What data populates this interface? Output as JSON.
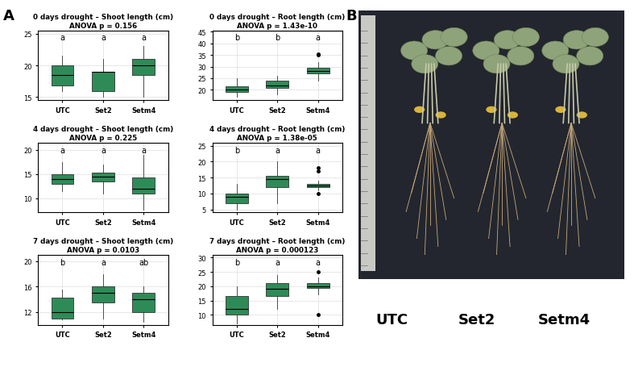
{
  "panel_labels": [
    "A",
    "B"
  ],
  "photo": {
    "labels": [
      "UTC",
      "Set2",
      "Setm4"
    ]
  },
  "chart_data": [
    {
      "type": "box",
      "title": "0 days drought – Shoot length (cm)\nANOVA p = 0.156",
      "categories": [
        "UTC",
        "Set2",
        "Setm4"
      ],
      "color": "#2e8b57",
      "grid": true,
      "ylim": [
        14.5,
        25.5
      ],
      "yticks": [
        15,
        20,
        25
      ],
      "annotations": [
        "a",
        "a",
        "a"
      ],
      "boxes": [
        {
          "min": 16,
          "q1": 16.8,
          "median": 18.5,
          "q3": 20,
          "max": 21.5,
          "outliers": []
        },
        {
          "min": 15,
          "q1": 16,
          "median": 19,
          "q3": 19,
          "max": 21,
          "outliers": []
        },
        {
          "min": 15,
          "q1": 18.5,
          "median": 20,
          "q3": 21,
          "max": 23,
          "outliers": []
        }
      ]
    },
    {
      "type": "box",
      "title": "0 days drought – Root length (cm)\nANOVA p = 1.43e-10",
      "categories": [
        "UTC",
        "Set2",
        "Setm4"
      ],
      "color": "#2e8b57",
      "grid": true,
      "ylim": [
        15.5,
        45.5
      ],
      "yticks": [
        20,
        25,
        30,
        35,
        40,
        45
      ],
      "annotations": [
        "b",
        "b",
        "a"
      ],
      "boxes": [
        {
          "min": 17,
          "q1": 19,
          "median": 20,
          "q3": 21.5,
          "max": 25,
          "outliers": []
        },
        {
          "min": 18,
          "q1": 21,
          "median": 22,
          "q3": 24,
          "max": 26,
          "outliers": []
        },
        {
          "min": 24,
          "q1": 27,
          "median": 28,
          "q3": 29.5,
          "max": 32,
          "outliers": [
            35,
            35.5
          ]
        }
      ]
    },
    {
      "type": "box",
      "title": "4 days drought – Shoot length (cm)\nANOVA p = 0.225",
      "categories": [
        "UTC",
        "Set2",
        "Setm4"
      ],
      "color": "#2e8b57",
      "grid": true,
      "ylim": [
        7,
        21.5
      ],
      "yticks": [
        10,
        15,
        20
      ],
      "annotations": [
        "a",
        "a",
        "a"
      ],
      "boxes": [
        {
          "min": 11.5,
          "q1": 13,
          "median": 14,
          "q3": 15,
          "max": 17.5,
          "outliers": []
        },
        {
          "min": 11,
          "q1": 13.5,
          "median": 14.5,
          "q3": 15.2,
          "max": 17,
          "outliers": []
        },
        {
          "min": 7.5,
          "q1": 11,
          "median": 12,
          "q3": 14.3,
          "max": 19,
          "outliers": []
        }
      ]
    },
    {
      "type": "box",
      "title": "4 days drought – Root length (cm)\nANOVA p = 1.38e-05",
      "categories": [
        "UTC",
        "Set2",
        "Setm4"
      ],
      "color": "#2e8b57",
      "grid": true,
      "ylim": [
        4,
        26
      ],
      "yticks": [
        5,
        10,
        15,
        20,
        25
      ],
      "annotations": [
        "b",
        "a",
        "a"
      ],
      "boxes": [
        {
          "min": 5,
          "q1": 7,
          "median": 9,
          "q3": 10,
          "max": 13,
          "outliers": []
        },
        {
          "min": 7,
          "q1": 12,
          "median": 14.5,
          "q3": 15.5,
          "max": 20,
          "outliers": []
        },
        {
          "min": 11,
          "q1": 12,
          "median": 12.5,
          "q3": 13,
          "max": 14,
          "outliers": [
            10,
            17,
            18
          ]
        }
      ]
    },
    {
      "type": "box",
      "title": "7 days drought – Shoot length (cm)\nANOVA p = 0.0103",
      "categories": [
        "UTC",
        "Set2",
        "Setm4"
      ],
      "color": "#2e8b57",
      "grid": true,
      "ylim": [
        10,
        21
      ],
      "yticks": [
        12,
        16,
        20
      ],
      "annotations": [
        "b",
        "a",
        "ab"
      ],
      "boxes": [
        {
          "min": 10.8,
          "q1": 11,
          "median": 12,
          "q3": 14.2,
          "max": 15.5,
          "outliers": []
        },
        {
          "min": 11,
          "q1": 13.5,
          "median": 15,
          "q3": 16,
          "max": 18,
          "outliers": []
        },
        {
          "min": 10.5,
          "q1": 12,
          "median": 14,
          "q3": 15,
          "max": 16,
          "outliers": []
        }
      ]
    },
    {
      "type": "box",
      "title": "7 days drought – Root length (cm)\nANOVA p = 0.000123",
      "categories": [
        "UTC",
        "Set2",
        "Setm4"
      ],
      "color": "#2e8b57",
      "grid": true,
      "ylim": [
        6.5,
        31
      ],
      "yticks": [
        10,
        15,
        20,
        25,
        30
      ],
      "annotations": [
        "b",
        "a",
        "a"
      ],
      "boxes": [
        {
          "min": 7,
          "q1": 10,
          "median": 12,
          "q3": 16.5,
          "max": 20,
          "outliers": []
        },
        {
          "min": 12,
          "q1": 16.5,
          "median": 19,
          "q3": 21,
          "max": 24,
          "outliers": []
        },
        {
          "min": 17,
          "q1": 19.5,
          "median": 20,
          "q3": 21,
          "max": 23,
          "outliers": [
            10,
            25
          ]
        }
      ]
    }
  ]
}
